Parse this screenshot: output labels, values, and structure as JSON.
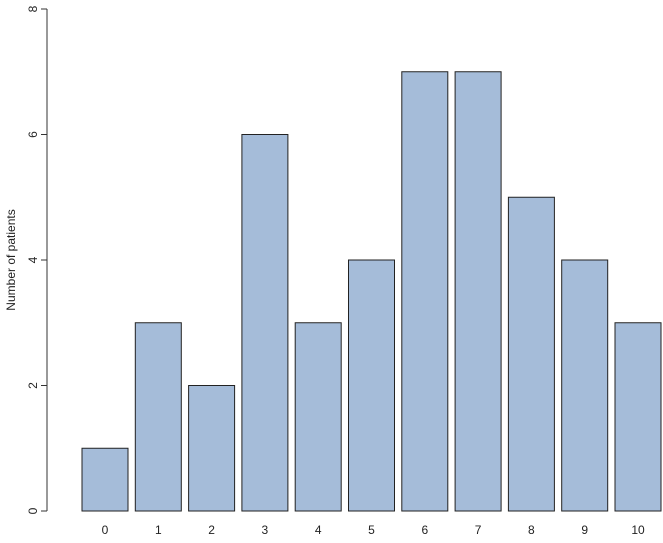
{
  "chart_data": {
    "type": "bar",
    "y_label": "Number of patients",
    "categories": [
      "0",
      "1",
      "2",
      "3",
      "4",
      "5",
      "6",
      "7",
      "8",
      "9",
      "10"
    ],
    "values": [
      1,
      3,
      2,
      6,
      3,
      4,
      7,
      7,
      5,
      4,
      3
    ],
    "color": "#a5bcd9",
    "ylim": [
      0,
      8
    ],
    "yticks": [
      0,
      2,
      4,
      6,
      8
    ],
    "grid": false
  }
}
